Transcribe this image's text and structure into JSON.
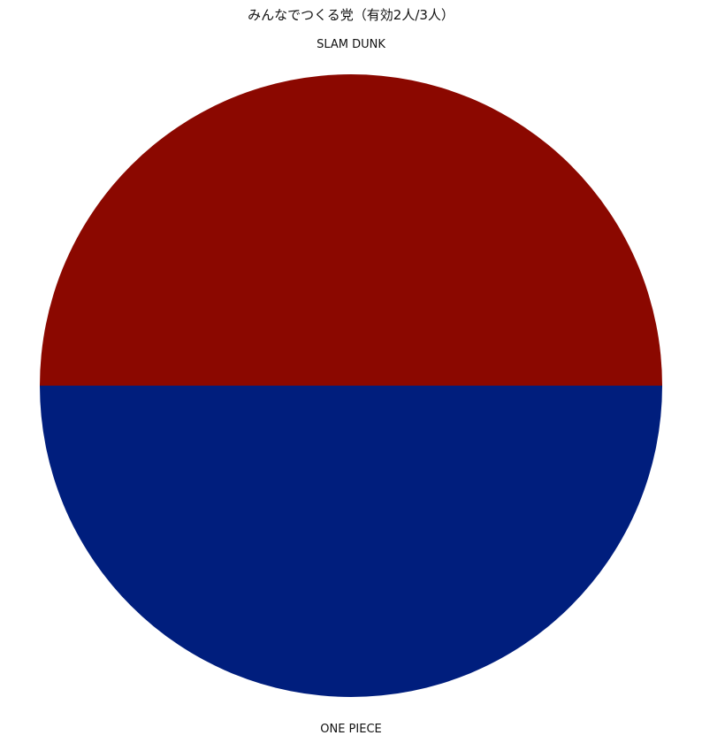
{
  "chart_data": {
    "type": "pie",
    "title": "みんなでつくる党（有効2人/3人）",
    "series": [
      {
        "values": [
          1,
          1
        ]
      }
    ],
    "categories": [
      "SLAM DUNK",
      "ONE PIECE"
    ],
    "colors": [
      "#8b0800",
      "#001e7d"
    ],
    "start_angle_deg": 0,
    "direction": "counterclockwise",
    "legend": "none"
  }
}
